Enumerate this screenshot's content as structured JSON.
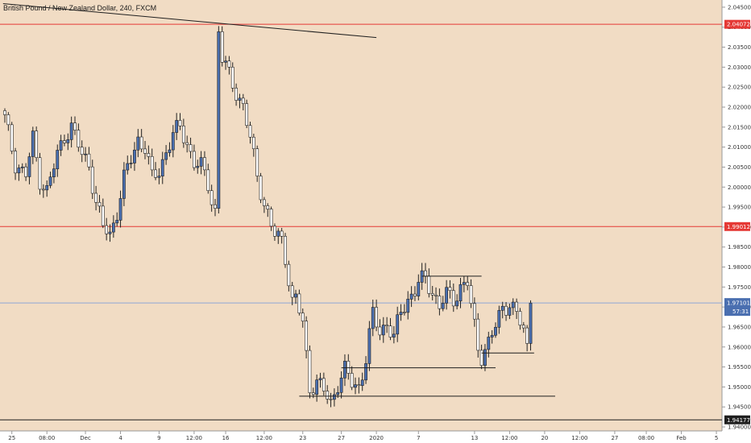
{
  "chart_data": {
    "type": "candlestick",
    "title": "British Pound / New Zealand Dollar, 240, FXCM",
    "colors": {
      "background": "#f1dcc4",
      "up": "#4a6fb0",
      "down": "#ffffff",
      "wick": "#222222",
      "red_level": "#e53935",
      "blue_level": "#8fa6d6",
      "black_line": "#1f1f1f",
      "last_price_badge": "#4a6fb0"
    },
    "ylim": [
      1.939,
      2.0468
    ],
    "y_ticks": [
      "2.04500",
      "2.04000",
      "2.03500",
      "2.03000",
      "2.02500",
      "2.02000",
      "2.01500",
      "2.01000",
      "2.00500",
      "2.00000",
      "1.99500",
      "1.99000",
      "1.98500",
      "1.98000",
      "1.97500",
      "1.97000",
      "1.96500",
      "1.96000",
      "1.95500",
      "1.95000",
      "1.94500",
      "1.94000"
    ],
    "x_ticks": [
      {
        "label": "25",
        "i": 2
      },
      {
        "label": "08:00",
        "i": 12
      },
      {
        "label": "Dec",
        "i": 23
      },
      {
        "label": "4",
        "i": 33
      },
      {
        "label": "9",
        "i": 44
      },
      {
        "label": "12:00",
        "i": 54
      },
      {
        "label": "16",
        "i": 63
      },
      {
        "label": "12:00",
        "i": 74
      },
      {
        "label": "23",
        "i": 85
      },
      {
        "label": "27",
        "i": 96
      },
      {
        "label": "2020",
        "i": 106
      },
      {
        "label": "7",
        "i": 118
      },
      {
        "label": "13",
        "i": 134
      },
      {
        "label": "12:00",
        "i": 144
      },
      {
        "label": "20",
        "i": 154
      },
      {
        "label": "12:00",
        "i": 164
      },
      {
        "label": "27",
        "i": 174
      },
      {
        "label": "08:00",
        "i": 183
      },
      {
        "label": "Feb",
        "i": 193
      },
      {
        "label": "5",
        "i": 203
      }
    ],
    "level_badges": [
      {
        "label": "2.04072",
        "value": 2.04072,
        "kind": "red"
      },
      {
        "label": "1.99012",
        "value": 1.99012,
        "kind": "red"
      },
      {
        "label": "1.94177",
        "value": 1.94177,
        "kind": "black"
      }
    ],
    "last_price": {
      "label": "1.97101",
      "countdown": "57:31",
      "value": 1.97101
    },
    "levels": [
      {
        "value": 2.04072,
        "kind": "red"
      },
      {
        "value": 1.99012,
        "kind": "red"
      },
      {
        "value": 1.94177,
        "kind": "black"
      },
      {
        "value": 1.97101,
        "kind": "blue"
      }
    ],
    "trendline": {
      "from": {
        "i": -0.5,
        "y": 2.0459
      },
      "to": {
        "i": 106,
        "y": 2.0374
      }
    },
    "hlines": [
      {
        "i0": 119,
        "i1": 136,
        "y": 1.9777
      },
      {
        "i0": 96,
        "i1": 140,
        "y": 1.9548
      },
      {
        "i0": 84,
        "i1": 157,
        "y": 1.9477
      },
      {
        "i0": 136,
        "i1": 151,
        "y": 1.9585
      }
    ],
    "price_path": [
      [
        0,
        2.017
      ],
      [
        3,
        2.006
      ],
      [
        6,
        2.003
      ],
      [
        8,
        2.012
      ],
      [
        10,
        2.002
      ],
      [
        12,
        1.999
      ],
      [
        15,
        2.008
      ],
      [
        17,
        2.013
      ],
      [
        19,
        2.015
      ],
      [
        22,
        2.008
      ],
      [
        24,
        2.006
      ],
      [
        26,
        1.996
      ],
      [
        28,
        1.99
      ],
      [
        30,
        1.988
      ],
      [
        32,
        1.994
      ],
      [
        34,
        2.002
      ],
      [
        36,
        2.007
      ],
      [
        38,
        2.012
      ],
      [
        40,
        2.01
      ],
      [
        42,
        2.002
      ],
      [
        44,
        2.004
      ],
      [
        46,
        2.009
      ],
      [
        48,
        2.013
      ],
      [
        50,
        2.015
      ],
      [
        52,
        2.011
      ],
      [
        54,
        2.006
      ],
      [
        56,
        2.005
      ],
      [
        58,
        2.001
      ],
      [
        59,
        1.997
      ],
      [
        60,
        1.994
      ],
      [
        61,
        2.039
      ],
      [
        62,
        2.032
      ],
      [
        64,
        2.028
      ],
      [
        66,
        2.024
      ],
      [
        68,
        2.02
      ],
      [
        70,
        2.012
      ],
      [
        72,
        2.003
      ],
      [
        74,
        1.996
      ],
      [
        76,
        1.99
      ],
      [
        77,
        1.988
      ],
      [
        79,
        1.987
      ],
      [
        80,
        1.983
      ],
      [
        81,
        1.977
      ],
      [
        82,
        1.971
      ],
      [
        83,
        1.972
      ],
      [
        85,
        1.966
      ],
      [
        87,
        1.95
      ],
      [
        89,
        1.951
      ],
      [
        91,
        1.949
      ],
      [
        93,
        1.946
      ],
      [
        95,
        1.951
      ],
      [
        97,
        1.954
      ],
      [
        99,
        1.951
      ],
      [
        101,
        1.95
      ],
      [
        103,
        1.957
      ],
      [
        105,
        1.968
      ],
      [
        107,
        1.964
      ],
      [
        109,
        1.966
      ],
      [
        111,
        1.962
      ],
      [
        113,
        1.969
      ],
      [
        115,
        1.972
      ],
      [
        117,
        1.974
      ],
      [
        118,
        1.976
      ],
      [
        120,
        1.977
      ],
      [
        122,
        1.974
      ],
      [
        124,
        1.97
      ],
      [
        126,
        1.973
      ],
      [
        128,
        1.972
      ],
      [
        130,
        1.975
      ],
      [
        132,
        1.976
      ],
      [
        133,
        1.97
      ],
      [
        134,
        1.965
      ],
      [
        135,
        1.96
      ],
      [
        136,
        1.958
      ],
      [
        138,
        1.961
      ],
      [
        140,
        1.965
      ],
      [
        142,
        1.97
      ],
      [
        144,
        1.971
      ],
      [
        146,
        1.968
      ],
      [
        148,
        1.964
      ],
      [
        149,
        1.96
      ],
      [
        150,
        1.971
      ]
    ]
  }
}
